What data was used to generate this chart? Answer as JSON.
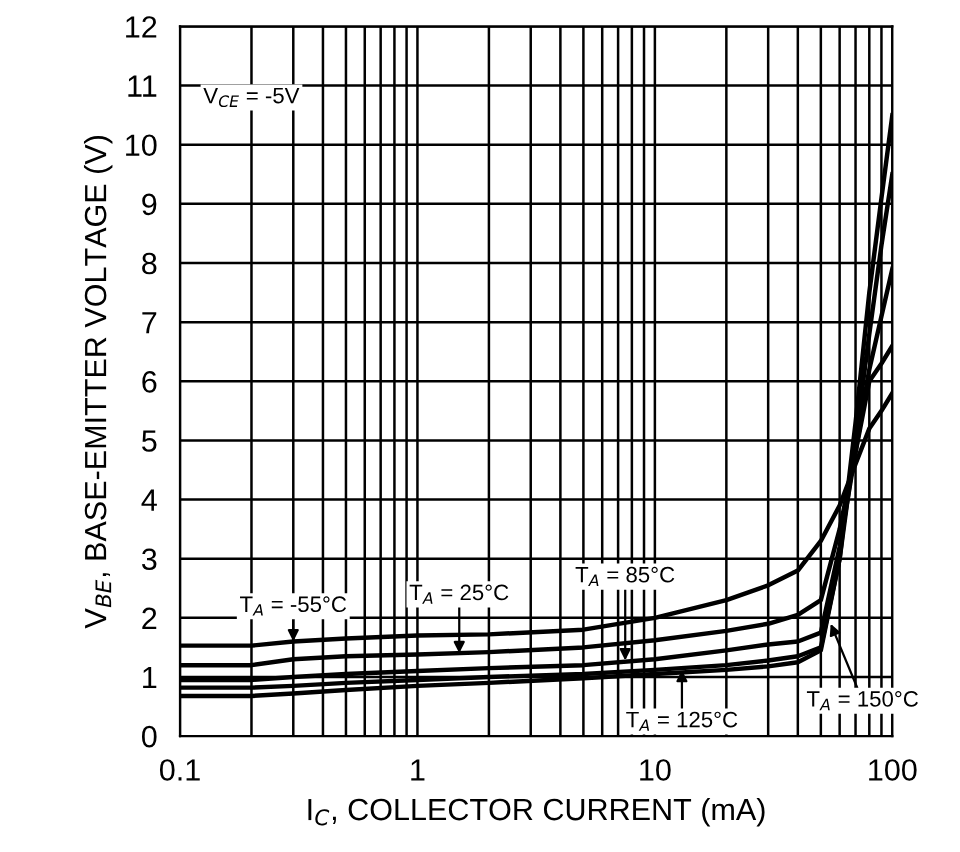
{
  "chart_data": {
    "type": "line",
    "xlabel": "I$_{C}$, COLLECTOR CURRENT (mA)",
    "ylabel": "V$_{BE}$, BASE-EMITTER VOLTAGE (V)",
    "x": [
      0.1,
      0.2,
      0.3,
      0.5,
      1,
      2,
      5,
      10,
      20,
      30,
      40,
      50,
      60,
      70,
      80,
      90,
      100
    ],
    "series": [
      {
        "color": "#000000",
        "values": [
          1.53,
          1.53,
          1.6,
          1.65,
          1.7,
          1.72,
          1.8,
          2.0,
          2.3,
          2.55,
          2.8,
          3.3,
          3.9,
          4.6,
          5.2,
          5.5,
          5.8
        ]
      },
      {
        "color": "#000000",
        "values": [
          1.2,
          1.2,
          1.3,
          1.35,
          1.38,
          1.42,
          1.5,
          1.62,
          1.78,
          1.9,
          2.05,
          2.3,
          3.5,
          4.8,
          6.0,
          6.3,
          6.6
        ]
      },
      {
        "color": "#000000",
        "values": [
          0.95,
          0.95,
          1.0,
          1.05,
          1.1,
          1.15,
          1.2,
          1.3,
          1.45,
          1.55,
          1.6,
          1.75,
          3.2,
          4.8,
          6.2,
          7.1,
          7.9
        ]
      },
      {
        "color": "#000000",
        "values": [
          0.82,
          0.82,
          0.85,
          0.9,
          0.95,
          1.0,
          1.05,
          1.12,
          1.2,
          1.28,
          1.35,
          1.5,
          3.0,
          5.0,
          6.8,
          8.3,
          9.5
        ]
      },
      {
        "color": "#000000",
        "values": [
          0.68,
          0.68,
          0.72,
          0.78,
          0.85,
          0.9,
          0.98,
          1.05,
          1.12,
          1.18,
          1.25,
          1.45,
          3.0,
          5.3,
          7.5,
          9.1,
          10.5
        ]
      }
    ],
    "annotations": [
      "V$_{CE}$ = -5V",
      {
        "text": "T$_{A}$ = -55°C",
        "x": 0.3,
        "y": 1.6
      },
      {
        "text": "T$_{A}$ = 25°C",
        "x": 1.5,
        "y": 1.4
      },
      {
        "text": "T$_{A}$ = 85°C",
        "x": 7.5,
        "y": 1.28
      },
      {
        "text": "T$_{A}$ = 125°C",
        "x": 13,
        "y": 1.12
      },
      {
        "text": "T$_{A}$ = 150°C",
        "x": 55,
        "y": 1.9
      }
    ],
    "log": "x",
    "xlim": [
      0.1,
      100
    ],
    "ylim": [
      0,
      12
    ],
    "xticks": [
      0.1,
      {
        "value": 0.2,
        "label": null
      },
      {
        "value": 0.3,
        "label": null
      },
      {
        "value": 0.4,
        "label": null
      },
      {
        "value": 0.5,
        "label": null
      },
      {
        "value": 0.6,
        "label": null
      },
      {
        "value": 0.7,
        "label": null
      },
      {
        "value": 0.8,
        "label": null
      },
      {
        "value": 0.9,
        "label": null
      },
      1,
      {
        "value": 2,
        "label": null
      },
      {
        "value": 3,
        "label": null
      },
      {
        "value": 4,
        "label": null
      },
      {
        "value": 5,
        "label": null
      },
      {
        "value": 6,
        "label": null
      },
      {
        "value": 7,
        "label": null
      },
      {
        "value": 8,
        "label": null
      },
      {
        "value": 9,
        "label": null
      },
      10,
      {
        "value": 20,
        "label": null
      },
      {
        "value": 30,
        "label": null
      },
      {
        "value": 40,
        "label": null
      },
      {
        "value": 50,
        "label": null
      },
      {
        "value": 60,
        "label": null
      },
      {
        "value": 70,
        "label": null
      },
      {
        "value": 80,
        "label": null
      },
      {
        "value": 90,
        "label": null
      },
      100
    ],
    "yticks": [
      0,
      1,
      2,
      3,
      4,
      5,
      6,
      7,
      8,
      9,
      10,
      11,
      12
    ],
    "grid": true,
    "marker": "none",
    "line_style": "solid"
  }
}
